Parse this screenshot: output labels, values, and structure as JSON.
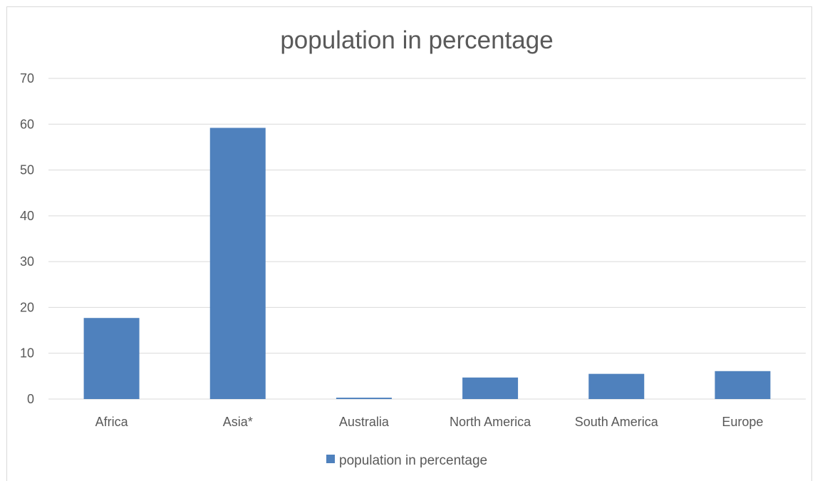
{
  "chart_data": {
    "type": "bar",
    "title": "population in percentage",
    "xlabel": "",
    "ylabel": "",
    "categories": [
      "Africa",
      "Asia*",
      "Australia",
      "North America",
      "South America",
      "Europe"
    ],
    "series": [
      {
        "name": "population in percentage",
        "values": [
          17.7,
          59.2,
          0.3,
          4.7,
          5.5,
          6.1
        ],
        "color": "#4f81bd"
      }
    ],
    "ylim": [
      0,
      70
    ],
    "yticks": [
      0,
      10,
      20,
      30,
      40,
      50,
      60,
      70
    ],
    "grid": true,
    "legend_position": "bottom",
    "gridline_color": "#d9d9d9",
    "text_color": "#595959"
  }
}
